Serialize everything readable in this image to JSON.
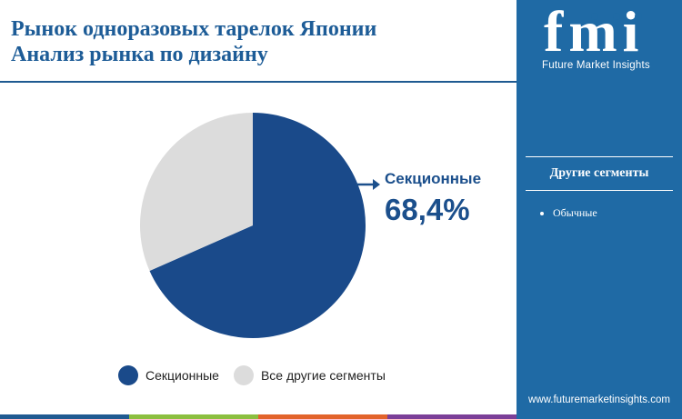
{
  "header": {
    "title_line1": "Рынок одноразовых тарелок Японии",
    "title_line2": "Анализ рынка по дизайну"
  },
  "brand": {
    "logo_letters": "fmi",
    "name": "Future Market Insights",
    "url": "www.futuremarketinsights.com"
  },
  "sidebar": {
    "heading": "Другие сегменты",
    "items": [
      "Обычные"
    ]
  },
  "callout": {
    "label": "Секционные",
    "value": "68,4%"
  },
  "chart_data": {
    "type": "pie",
    "slices": [
      {
        "name": "Секционные",
        "value": 68.4,
        "color": "#1a4a8a"
      },
      {
        "name": "Все другие сегменты",
        "value": 31.6,
        "color": "#dcdcdc"
      }
    ],
    "legend": {
      "position": "bottom"
    }
  },
  "colors": {
    "accent": "#1d5c97",
    "sidebar": "#1f6aa5",
    "bottom_bar": [
      "#1f5a91",
      "#8bbf3f",
      "#e2632b",
      "#7b3f98"
    ]
  }
}
